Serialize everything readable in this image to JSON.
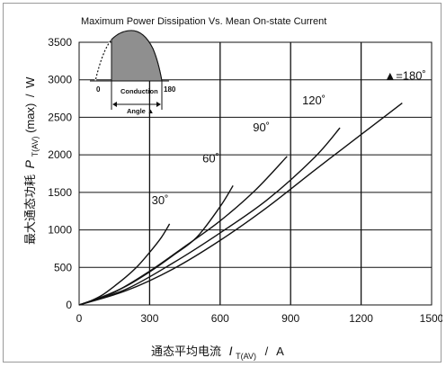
{
  "chart_data": {
    "type": "line",
    "title": "Maximum Power Dissipation Vs. Mean On-state Current",
    "xlabel": {
      "text": "通态平均电流",
      "symbol": "I",
      "subscript": "T(AV)",
      "separator": "/",
      "unit": "A"
    },
    "ylabel": {
      "text": "最大通态功耗",
      "symbol": "P",
      "subscript": "T(AV)",
      "suffix": "(max)",
      "separator": "/",
      "unit": "W"
    },
    "xlim": [
      0,
      1500
    ],
    "ylim": [
      0,
      3500
    ],
    "xticks": [
      "0",
      "300",
      "600",
      "900",
      "1200",
      "1500"
    ],
    "yticks": [
      "0",
      "500",
      "1000",
      "1500",
      "2000",
      "2500",
      "3000",
      "3500"
    ],
    "grid": "vertical and horizontal",
    "series": [
      {
        "name": "30˚",
        "x": [
          0,
          50,
          100,
          150,
          200,
          250,
          300,
          350,
          385
        ],
        "y": [
          0,
          55,
          135,
          250,
          375,
          520,
          700,
          900,
          1080
        ]
      },
      {
        "name": "60˚",
        "x": [
          0,
          100,
          200,
          300,
          400,
          500,
          600,
          655
        ],
        "y": [
          0,
          110,
          250,
          440,
          660,
          900,
          1310,
          1590
        ]
      },
      {
        "name": "90˚",
        "x": [
          0,
          150,
          300,
          450,
          600,
          750,
          885
        ],
        "y": [
          0,
          170,
          450,
          780,
          1120,
          1530,
          1980
        ]
      },
      {
        "name": "120˚",
        "x": [
          0,
          200,
          400,
          600,
          800,
          1000,
          1110
        ],
        "y": [
          0,
          210,
          560,
          960,
          1400,
          1960,
          2360
        ]
      },
      {
        "name": "▲=180˚",
        "x": [
          0,
          200,
          400,
          600,
          800,
          1000,
          1200,
          1375
        ],
        "y": [
          0,
          190,
          480,
          860,
          1300,
          1790,
          2270,
          2690
        ]
      }
    ],
    "inset": {
      "start_label": "0",
      "end_label": "180",
      "caption_line1": "Conduction",
      "caption_line2": "Angle ▲"
    }
  }
}
